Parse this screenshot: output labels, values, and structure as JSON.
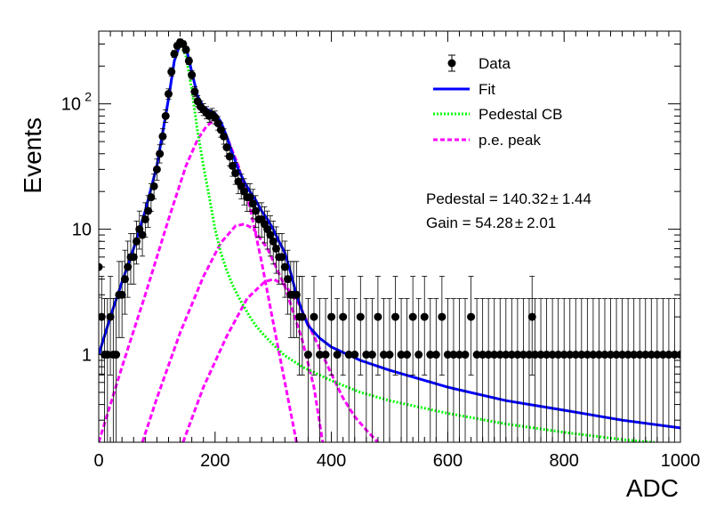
{
  "chart_data": {
    "type": "scatter",
    "title": "",
    "xlabel": "ADC",
    "ylabel": "Events",
    "xlim": [
      0,
      1000
    ],
    "ylim": [
      0.2,
      380
    ],
    "yscale": "log",
    "x_ticks": [
      {
        "value": 0,
        "label": "0"
      },
      {
        "value": 200,
        "label": "200"
      },
      {
        "value": 400,
        "label": "400"
      },
      {
        "value": 600,
        "label": "600"
      },
      {
        "value": 800,
        "label": "800"
      },
      {
        "value": 1000,
        "label": "1000"
      }
    ],
    "y_ticks": [
      {
        "value": 1,
        "label": "1"
      },
      {
        "value": 10,
        "label": "10"
      },
      {
        "value": 100,
        "label": "10",
        "exponent": "2"
      }
    ],
    "legend": {
      "placement": "top-right",
      "entries": [
        {
          "label": "Data",
          "style": "marker",
          "color": "#000000"
        },
        {
          "label": "Fit",
          "style": "solid",
          "color": "#0000ff"
        },
        {
          "label": "Pedestal CB",
          "style": "dotted",
          "color": "#00ff00"
        },
        {
          "label": "p.e. peak",
          "style": "dashed",
          "color": "#ff00ff"
        }
      ]
    },
    "annotations": [
      {
        "text": "Pedestal = 140.32",
        "pm": "±",
        "err": "1.44"
      },
      {
        "text": "Gain = 54.28",
        "pm": "±",
        "err": "2.01"
      }
    ],
    "series": [
      {
        "name": "Data",
        "kind": "points_with_errors",
        "color": "#000000",
        "points": [
          [
            0,
            5
          ],
          [
            5,
            2
          ],
          [
            10,
            1
          ],
          [
            15,
            1
          ],
          [
            20,
            2
          ],
          [
            25,
            1
          ],
          [
            30,
            1
          ],
          [
            35,
            3
          ],
          [
            40,
            3
          ],
          [
            45,
            4
          ],
          [
            50,
            5
          ],
          [
            55,
            6
          ],
          [
            60,
            6
          ],
          [
            65,
            8
          ],
          [
            70,
            10
          ],
          [
            75,
            9
          ],
          [
            80,
            12
          ],
          [
            85,
            14
          ],
          [
            90,
            18
          ],
          [
            95,
            22
          ],
          [
            100,
            30
          ],
          [
            105,
            40
          ],
          [
            110,
            55
          ],
          [
            115,
            80
          ],
          [
            120,
            120
          ],
          [
            125,
            180
          ],
          [
            130,
            250
          ],
          [
            135,
            290
          ],
          [
            140,
            310
          ],
          [
            145,
            300
          ],
          [
            150,
            270
          ],
          [
            155,
            220
          ],
          [
            160,
            170
          ],
          [
            165,
            125
          ],
          [
            170,
            105
          ],
          [
            175,
            95
          ],
          [
            180,
            90
          ],
          [
            185,
            85
          ],
          [
            190,
            80
          ],
          [
            195,
            82
          ],
          [
            200,
            78
          ],
          [
            205,
            70
          ],
          [
            210,
            62
          ],
          [
            215,
            55
          ],
          [
            220,
            45
          ],
          [
            225,
            38
          ],
          [
            230,
            32
          ],
          [
            235,
            28
          ],
          [
            240,
            24
          ],
          [
            245,
            22
          ],
          [
            250,
            20
          ],
          [
            255,
            18
          ],
          [
            260,
            18
          ],
          [
            265,
            16
          ],
          [
            270,
            14
          ],
          [
            275,
            12
          ],
          [
            280,
            12
          ],
          [
            285,
            11
          ],
          [
            290,
            10
          ],
          [
            295,
            9
          ],
          [
            300,
            8
          ],
          [
            305,
            7
          ],
          [
            310,
            6
          ],
          [
            315,
            6
          ],
          [
            320,
            5
          ],
          [
            325,
            4
          ],
          [
            330,
            3
          ],
          [
            335,
            3
          ],
          [
            340,
            3
          ],
          [
            345,
            2
          ],
          [
            350,
            2
          ],
          [
            360,
            1
          ],
          [
            370,
            2
          ],
          [
            380,
            1
          ],
          [
            390,
            1
          ],
          [
            400,
            2
          ],
          [
            410,
            1
          ],
          [
            420,
            2
          ],
          [
            430,
            1
          ],
          [
            440,
            1
          ],
          [
            450,
            2
          ],
          [
            460,
            1
          ],
          [
            470,
            1
          ],
          [
            480,
            2
          ],
          [
            490,
            1
          ],
          [
            500,
            1
          ],
          [
            510,
            2
          ],
          [
            520,
            1
          ],
          [
            530,
            1
          ],
          [
            540,
            2
          ],
          [
            550,
            1
          ],
          [
            560,
            2
          ],
          [
            570,
            1
          ],
          [
            580,
            1
          ],
          [
            590,
            2
          ],
          [
            600,
            1
          ],
          [
            610,
            1
          ],
          [
            620,
            1
          ],
          [
            630,
            1
          ],
          [
            640,
            2
          ],
          [
            650,
            1
          ],
          [
            660,
            1
          ],
          [
            670,
            1
          ],
          [
            680,
            1
          ],
          [
            690,
            1
          ],
          [
            700,
            1
          ],
          [
            710,
            1
          ],
          [
            720,
            1
          ],
          [
            730,
            1
          ],
          [
            740,
            1
          ],
          [
            745,
            2
          ],
          [
            750,
            1
          ],
          [
            760,
            1
          ],
          [
            770,
            1
          ],
          [
            780,
            1
          ],
          [
            790,
            1
          ],
          [
            800,
            1
          ],
          [
            810,
            1
          ],
          [
            820,
            1
          ],
          [
            830,
            1
          ],
          [
            840,
            1
          ],
          [
            850,
            1
          ],
          [
            860,
            1
          ],
          [
            870,
            1
          ],
          [
            880,
            1
          ],
          [
            890,
            1
          ],
          [
            900,
            1
          ],
          [
            910,
            1
          ],
          [
            920,
            1
          ],
          [
            930,
            1
          ],
          [
            940,
            1
          ],
          [
            950,
            1
          ],
          [
            960,
            1
          ],
          [
            970,
            1
          ],
          [
            980,
            1
          ],
          [
            990,
            1
          ],
          [
            1000,
            1
          ]
        ]
      },
      {
        "name": "Fit",
        "kind": "curve",
        "color": "#0000ff",
        "points": [
          [
            0,
            1
          ],
          [
            20,
            2
          ],
          [
            40,
            3.8
          ],
          [
            60,
            7
          ],
          [
            80,
            14
          ],
          [
            100,
            32
          ],
          [
            120,
            110
          ],
          [
            130,
            220
          ],
          [
            140,
            305
          ],
          [
            150,
            285
          ],
          [
            160,
            180
          ],
          [
            170,
            115
          ],
          [
            180,
            95
          ],
          [
            190,
            88
          ],
          [
            200,
            84
          ],
          [
            210,
            72
          ],
          [
            220,
            55
          ],
          [
            230,
            40
          ],
          [
            240,
            30
          ],
          [
            250,
            24
          ],
          [
            260,
            20
          ],
          [
            270,
            17
          ],
          [
            280,
            14
          ],
          [
            290,
            12
          ],
          [
            300,
            10
          ],
          [
            310,
            8
          ],
          [
            320,
            6.5
          ],
          [
            330,
            4.5
          ],
          [
            340,
            3
          ],
          [
            350,
            2.2
          ],
          [
            360,
            1.7
          ],
          [
            380,
            1.35
          ],
          [
            400,
            1.15
          ],
          [
            450,
            0.9
          ],
          [
            500,
            0.75
          ],
          [
            600,
            0.55
          ],
          [
            700,
            0.43
          ],
          [
            800,
            0.36
          ],
          [
            900,
            0.3
          ],
          [
            1000,
            0.26
          ]
        ]
      },
      {
        "name": "Pedestal CB",
        "kind": "curve",
        "color": "#00ff00",
        "points": [
          [
            0,
            1
          ],
          [
            20,
            2
          ],
          [
            40,
            3.8
          ],
          [
            60,
            7
          ],
          [
            80,
            14
          ],
          [
            100,
            32
          ],
          [
            120,
            110
          ],
          [
            130,
            220
          ],
          [
            140,
            300
          ],
          [
            150,
            240
          ],
          [
            160,
            130
          ],
          [
            170,
            60
          ],
          [
            180,
            32
          ],
          [
            190,
            18
          ],
          [
            200,
            10
          ],
          [
            210,
            6.5
          ],
          [
            220,
            4.7
          ],
          [
            230,
            3.6
          ],
          [
            240,
            2.9
          ],
          [
            250,
            2.4
          ],
          [
            260,
            2.0
          ],
          [
            270,
            1.7
          ],
          [
            280,
            1.5
          ],
          [
            300,
            1.2
          ],
          [
            320,
            0.98
          ],
          [
            350,
            0.8
          ],
          [
            400,
            0.62
          ],
          [
            450,
            0.5
          ],
          [
            500,
            0.43
          ],
          [
            600,
            0.34
          ],
          [
            700,
            0.28
          ],
          [
            800,
            0.24
          ],
          [
            900,
            0.21
          ],
          [
            1000,
            0.19
          ]
        ]
      },
      {
        "name": "p.e. peak 1",
        "kind": "curve",
        "color": "#ff00ff",
        "points": [
          [
            0,
            0.2
          ],
          [
            40,
            0.8
          ],
          [
            80,
            3
          ],
          [
            120,
            12
          ],
          [
            150,
            32
          ],
          [
            170,
            52
          ],
          [
            185,
            66
          ],
          [
            195,
            72
          ],
          [
            205,
            70
          ],
          [
            220,
            55
          ],
          [
            240,
            32
          ],
          [
            260,
            15
          ],
          [
            280,
            5.5
          ],
          [
            300,
            1.8
          ],
          [
            320,
            0.6
          ],
          [
            340,
            0.2
          ]
        ]
      },
      {
        "name": "p.e. peak 2",
        "kind": "curve",
        "color": "#ff00ff",
        "points": [
          [
            75,
            0.2
          ],
          [
            100,
            0.45
          ],
          [
            140,
            1.5
          ],
          [
            180,
            4.2
          ],
          [
            210,
            7.8
          ],
          [
            235,
            10.6
          ],
          [
            250,
            11.0
          ],
          [
            265,
            10.2
          ],
          [
            290,
            7
          ],
          [
            320,
            3.5
          ],
          [
            350,
            1.3
          ],
          [
            370,
            0.55
          ],
          [
            385,
            0.2
          ]
        ]
      },
      {
        "name": "p.e. peak 3",
        "kind": "curve",
        "color": "#ff00ff",
        "points": [
          [
            145,
            0.2
          ],
          [
            180,
            0.55
          ],
          [
            220,
            1.4
          ],
          [
            255,
            2.8
          ],
          [
            285,
            3.8
          ],
          [
            300,
            4.0
          ],
          [
            320,
            3.6
          ],
          [
            345,
            2.5
          ],
          [
            370,
            1.4
          ],
          [
            400,
            0.7
          ],
          [
            420,
            0.45
          ],
          [
            440,
            0.32
          ],
          [
            460,
            0.25
          ],
          [
            480,
            0.2
          ]
        ]
      }
    ]
  }
}
